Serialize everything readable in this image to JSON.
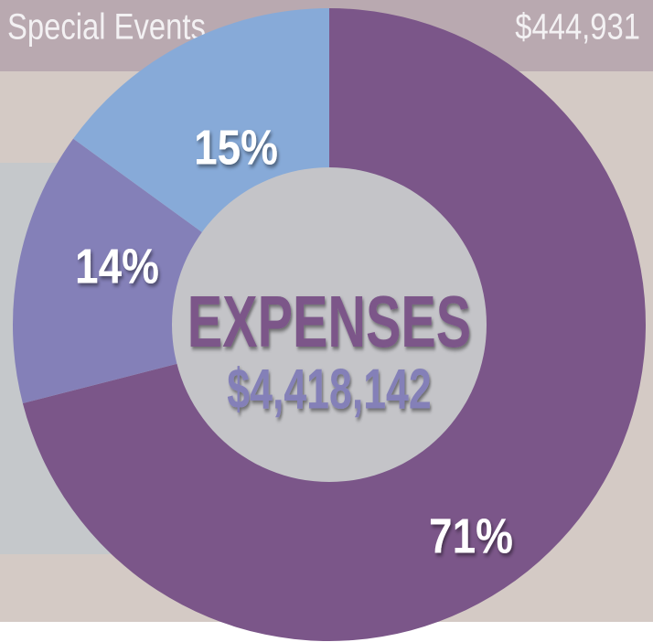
{
  "header": {
    "label": "Special Events",
    "amount": "$444,931"
  },
  "chart_data": {
    "type": "donut",
    "title": "EXPENSES",
    "subtitle": "$4,418,142",
    "values": [
      71,
      14,
      15
    ],
    "value_labels": [
      "71%",
      "14%",
      "15%"
    ],
    "colors": [
      "#7b5689",
      "#8480b8",
      "#87aad8"
    ]
  }
}
